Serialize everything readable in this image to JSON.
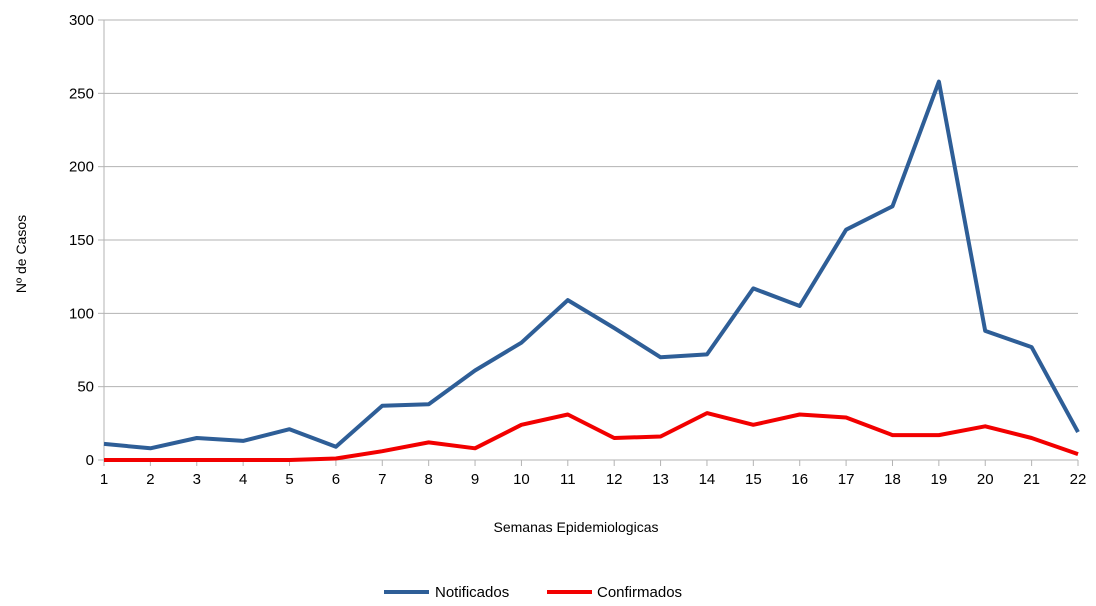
{
  "chart_data": {
    "type": "line",
    "title": "",
    "xlabel": "Semanas Epidemiologicas",
    "ylabel": "Nº de Casos",
    "x": [
      1,
      2,
      3,
      4,
      5,
      6,
      7,
      8,
      9,
      10,
      11,
      12,
      13,
      14,
      15,
      16,
      17,
      18,
      19,
      20,
      21,
      22
    ],
    "x_tick_labels": [
      "1",
      "2",
      "3",
      "4",
      "5",
      "6",
      "7",
      "8",
      "9",
      "10",
      "11",
      "12",
      "13",
      "14",
      "15",
      "16",
      "17",
      "18",
      "19",
      "20",
      "21",
      "22"
    ],
    "ylim": [
      0,
      300
    ],
    "y_ticks": [
      0,
      50,
      100,
      150,
      200,
      250,
      300
    ],
    "y_tick_labels": [
      "0",
      "50",
      "100",
      "150",
      "200",
      "250",
      "300"
    ],
    "grid": true,
    "legend_position": "bottom-center",
    "series": [
      {
        "name": "Notificados",
        "color": "#2e5e97",
        "values": [
          11,
          8,
          15,
          13,
          21,
          9,
          37,
          38,
          61,
          80,
          109,
          90,
          70,
          72,
          117,
          105,
          157,
          173,
          258,
          88,
          77,
          19
        ]
      },
      {
        "name": "Confirmados",
        "color": "#f20000",
        "values": [
          0,
          0,
          0,
          0,
          0,
          1,
          6,
          12,
          8,
          24,
          31,
          15,
          16,
          32,
          24,
          31,
          29,
          17,
          17,
          23,
          15,
          4
        ]
      }
    ]
  }
}
